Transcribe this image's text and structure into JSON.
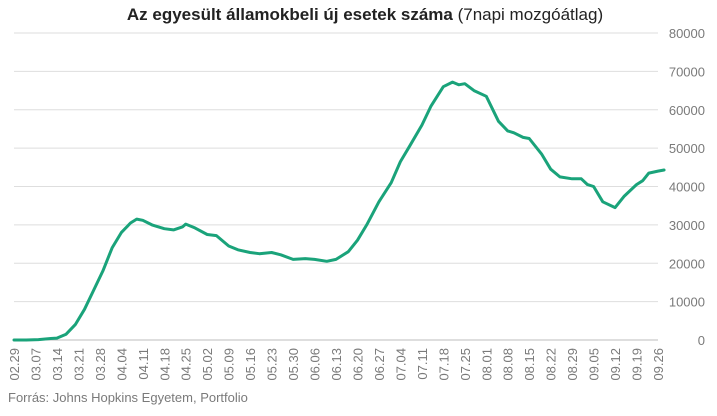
{
  "chart_data": {
    "type": "line",
    "title_bold": "Az egyesült államokbeli új esetek száma",
    "title_regular": " (7napi mozgóátlag)",
    "ylim": [
      0,
      80000
    ],
    "yticks": [
      "0",
      "10000",
      "20000",
      "30000",
      "40000",
      "50000",
      "60000",
      "70000",
      "80000"
    ],
    "y_axis_side": "right",
    "grid": true,
    "xticks": [
      "02.29",
      "03.07",
      "03.14",
      "03.21",
      "03.28",
      "04.04",
      "04.11",
      "04.18",
      "04.25",
      "05.02",
      "05.09",
      "05.16",
      "05.23",
      "05.30",
      "06.06",
      "06.13",
      "06.20",
      "06.27",
      "07.04",
      "07.11",
      "07.18",
      "07.25",
      "08.01",
      "08.08",
      "08.15",
      "08.22",
      "08.29",
      "09.05",
      "09.12",
      "09.19",
      "09.26"
    ],
    "line_color": "#1aa37a",
    "series": [
      {
        "points": [
          [
            "02.29",
            0
          ],
          [
            "03.04",
            0
          ],
          [
            "03.08",
            100
          ],
          [
            "03.12",
            400
          ],
          [
            "03.14",
            500
          ],
          [
            "03.17",
            1500
          ],
          [
            "03.20",
            4000
          ],
          [
            "03.23",
            8000
          ],
          [
            "03.26",
            13000
          ],
          [
            "03.29",
            18000
          ],
          [
            "04.01",
            24000
          ],
          [
            "04.04",
            28000
          ],
          [
            "04.07",
            30500
          ],
          [
            "04.09",
            31500
          ],
          [
            "04.11",
            31200
          ],
          [
            "04.14",
            30000
          ],
          [
            "04.18",
            29000
          ],
          [
            "04.21",
            28700
          ],
          [
            "04.24",
            29500
          ],
          [
            "04.25",
            30200
          ],
          [
            "04.28",
            29200
          ],
          [
            "05.02",
            27500
          ],
          [
            "05.05",
            27200
          ],
          [
            "05.09",
            24500
          ],
          [
            "05.12",
            23500
          ],
          [
            "05.16",
            22800
          ],
          [
            "05.19",
            22500
          ],
          [
            "05.23",
            22800
          ],
          [
            "05.26",
            22200
          ],
          [
            "05.30",
            21000
          ],
          [
            "06.03",
            21200
          ],
          [
            "06.06",
            21000
          ],
          [
            "06.10",
            20500
          ],
          [
            "06.13",
            21000
          ],
          [
            "06.17",
            23000
          ],
          [
            "06.20",
            26000
          ],
          [
            "06.23",
            30000
          ],
          [
            "06.27",
            36000
          ],
          [
            "07.01",
            41000
          ],
          [
            "07.04",
            46500
          ],
          [
            "07.07",
            50500
          ],
          [
            "07.11",
            56000
          ],
          [
            "07.14",
            61000
          ],
          [
            "07.18",
            66000
          ],
          [
            "07.21",
            67200
          ],
          [
            "07.23",
            66500
          ],
          [
            "07.25",
            66800
          ],
          [
            "07.28",
            65000
          ],
          [
            "08.01",
            63500
          ],
          [
            "08.05",
            57000
          ],
          [
            "08.08",
            54500
          ],
          [
            "08.10",
            54000
          ],
          [
            "08.13",
            52800
          ],
          [
            "08.15",
            52500
          ],
          [
            "08.19",
            48500
          ],
          [
            "08.22",
            44500
          ],
          [
            "08.25",
            42500
          ],
          [
            "08.29",
            42000
          ],
          [
            "09.01",
            42000
          ],
          [
            "09.03",
            40500
          ],
          [
            "09.05",
            40000
          ],
          [
            "09.08",
            36000
          ],
          [
            "09.12",
            34500
          ],
          [
            "09.15",
            37500
          ],
          [
            "09.19",
            40500
          ],
          [
            "09.21",
            41500
          ],
          [
            "09.23",
            43500
          ],
          [
            "09.26",
            44000
          ],
          [
            "09.28",
            44300
          ]
        ]
      }
    ]
  },
  "source": "Forrás: Johns Hopkins Egyetem, Portfolio"
}
